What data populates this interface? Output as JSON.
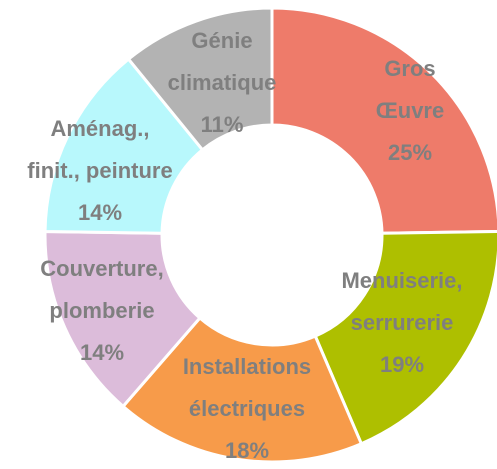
{
  "chart_data": {
    "type": "donut",
    "categories": [
      [
        "Gros",
        "Œuvre"
      ],
      [
        "Menuiserie,",
        "serrurerie"
      ],
      [
        "Installations",
        "électriques"
      ],
      [
        "Couverture,",
        "plomberie"
      ],
      [
        "Aménag.,",
        "finit., peinture"
      ],
      [
        "Génie",
        "climatique"
      ]
    ],
    "values": [
      25,
      19,
      18,
      14,
      14,
      11
    ],
    "value_labels": [
      "25%",
      "19%",
      "18%",
      "14%",
      "14%",
      "11%"
    ],
    "colors": [
      "#ee7b6a",
      "#aebf00",
      "#f79b4a",
      "#dcbcda",
      "#b8f8fc",
      "#b3b3b3"
    ]
  }
}
